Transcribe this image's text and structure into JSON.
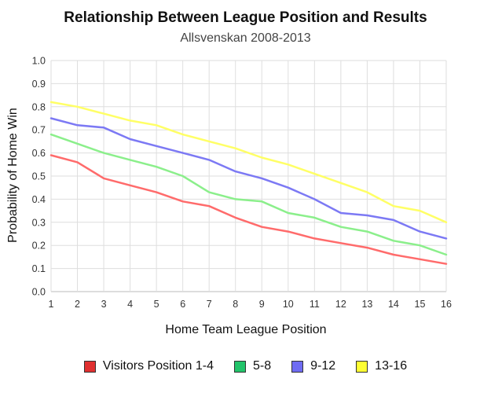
{
  "chart_data": {
    "type": "line",
    "title": "Relationship Between League Position and Results",
    "subtitle": "Allsvenskan 2008-2013",
    "xlabel": "Home Team League Position",
    "ylabel": "Probability of Home Win",
    "x": [
      1,
      2,
      3,
      4,
      5,
      6,
      7,
      8,
      9,
      10,
      11,
      12,
      13,
      14,
      15,
      16
    ],
    "xlim": [
      1,
      16
    ],
    "ylim": [
      0,
      1
    ],
    "yticks": [
      "0.0",
      "0.1",
      "0.2",
      "0.3",
      "0.4",
      "0.5",
      "0.6",
      "0.7",
      "0.8",
      "0.9",
      "1.0"
    ],
    "grid": true,
    "legend_position": "bottom",
    "series": [
      {
        "name": "Visitors Position 1-4",
        "color": "#ff6b6b",
        "values": [
          0.59,
          0.56,
          0.49,
          0.46,
          0.43,
          0.39,
          0.37,
          0.32,
          0.28,
          0.26,
          0.23,
          0.21,
          0.19,
          0.16,
          0.14,
          0.12
        ]
      },
      {
        "name": "5-8",
        "color": "#8bef8b",
        "values": [
          0.68,
          0.64,
          0.6,
          0.57,
          0.54,
          0.5,
          0.43,
          0.4,
          0.39,
          0.34,
          0.32,
          0.28,
          0.26,
          0.22,
          0.2,
          0.16
        ]
      },
      {
        "name": "9-12",
        "color": "#7c79f4",
        "values": [
          0.75,
          0.72,
          0.71,
          0.66,
          0.63,
          0.6,
          0.57,
          0.52,
          0.49,
          0.45,
          0.4,
          0.34,
          0.33,
          0.31,
          0.26,
          0.23
        ]
      },
      {
        "name": "13-16",
        "color": "#ffff66",
        "values": [
          0.82,
          0.8,
          0.77,
          0.74,
          0.72,
          0.68,
          0.65,
          0.62,
          0.58,
          0.55,
          0.51,
          0.47,
          0.43,
          0.37,
          0.35,
          0.3
        ]
      }
    ],
    "legend_swatch_colors": [
      "#e03030",
      "#22c46a",
      "#6f6cf2",
      "#ffff33"
    ]
  }
}
